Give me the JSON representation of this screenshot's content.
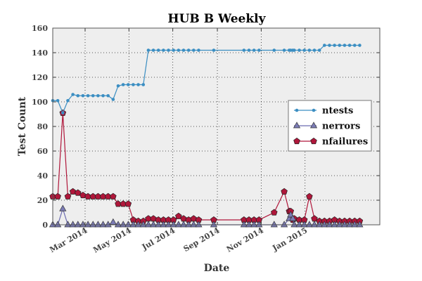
{
  "chart_data": {
    "type": "line",
    "title": "HUB B Weekly",
    "xlabel": "Date",
    "ylabel": "Test Count",
    "ylim": [
      0,
      160
    ],
    "xlim": [
      "2014-01-15",
      "2015-04-15"
    ],
    "yticks": [
      0,
      20,
      40,
      60,
      80,
      100,
      120,
      140,
      160
    ],
    "xticks": [
      {
        "date": "2014-03-01",
        "label": "Mar 2014"
      },
      {
        "date": "2014-05-01",
        "label": "May 2014"
      },
      {
        "date": "2014-07-01",
        "label": "Jul 2014"
      },
      {
        "date": "2014-09-01",
        "label": "Sep 2014"
      },
      {
        "date": "2014-11-01",
        "label": "Nov 2014"
      },
      {
        "date": "2015-01-01",
        "label": "Jan 2015"
      }
    ],
    "grid": true,
    "legend_position": "right",
    "x": [
      "2014-01-15",
      "2014-01-22",
      "2014-01-29",
      "2014-02-05",
      "2014-02-12",
      "2014-02-19",
      "2014-02-26",
      "2014-03-05",
      "2014-03-12",
      "2014-03-19",
      "2014-03-26",
      "2014-04-02",
      "2014-04-09",
      "2014-04-16",
      "2014-04-23",
      "2014-04-30",
      "2014-05-07",
      "2014-05-14",
      "2014-05-21",
      "2014-05-28",
      "2014-06-04",
      "2014-06-11",
      "2014-06-18",
      "2014-06-25",
      "2014-07-02",
      "2014-07-09",
      "2014-07-16",
      "2014-07-23",
      "2014-07-30",
      "2014-08-06",
      "2014-08-27",
      "2014-10-08",
      "2014-10-15",
      "2014-10-22",
      "2014-10-29",
      "2014-11-19",
      "2014-12-03",
      "2014-12-10",
      "2014-12-12",
      "2014-12-15",
      "2014-12-17",
      "2014-12-24",
      "2014-12-31",
      "2015-01-07",
      "2015-01-14",
      "2015-01-21",
      "2015-01-28",
      "2015-02-04",
      "2015-02-11",
      "2015-02-18",
      "2015-02-25",
      "2015-03-04",
      "2015-03-11",
      "2015-03-18"
    ],
    "series": [
      {
        "name": "ntests",
        "color": "#3b8ec2",
        "marker": "dot",
        "values": [
          101,
          101,
          91,
          101,
          106,
          105,
          105,
          105,
          105,
          105,
          105,
          105,
          102,
          113,
          114,
          114,
          114,
          114,
          114,
          142,
          142,
          142,
          142,
          142,
          142,
          142,
          142,
          142,
          142,
          142,
          142,
          142,
          142,
          142,
          142,
          142,
          142,
          142,
          142,
          142,
          142,
          142,
          142,
          142,
          142,
          142,
          146,
          146,
          146,
          146,
          146,
          146,
          146,
          146
        ]
      },
      {
        "name": "nerrors",
        "color": "#7b7bb5",
        "marker": "triangle",
        "values": [
          0,
          0,
          13,
          0,
          0,
          0,
          0,
          0,
          0,
          0,
          0,
          0,
          2,
          0,
          0,
          0,
          0,
          0,
          0,
          0,
          0,
          0,
          0,
          0,
          0,
          0,
          0,
          0,
          0,
          0,
          0,
          0,
          0,
          0,
          0,
          0,
          0,
          5,
          8,
          5,
          0,
          0,
          0,
          0,
          0,
          0,
          0,
          0,
          0,
          0,
          0,
          0,
          0,
          0
        ]
      },
      {
        "name": "nfailures",
        "color": "#b0163a",
        "marker": "pentagon",
        "values": [
          23,
          23,
          91,
          23,
          27,
          26,
          24,
          23,
          23,
          23,
          23,
          23,
          23,
          17,
          17,
          17,
          4,
          3,
          3,
          5,
          5,
          4,
          4,
          4,
          4,
          7,
          5,
          4,
          5,
          4,
          4,
          4,
          4,
          4,
          4,
          10,
          27,
          11,
          11,
          4,
          5,
          4,
          4,
          23,
          5,
          3,
          3,
          3,
          4,
          3,
          3,
          3,
          3,
          3
        ]
      }
    ]
  }
}
